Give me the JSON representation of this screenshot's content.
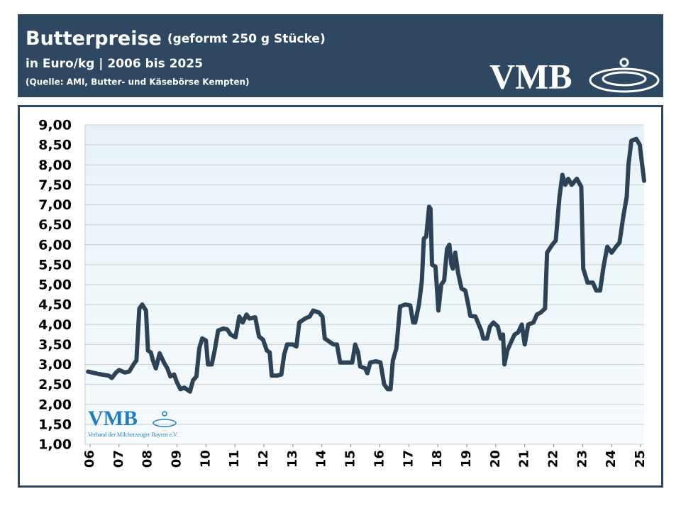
{
  "chart_data": {
    "type": "line",
    "title": "Butterpreise",
    "title_suffix": "(geformt 250 g Stücke)",
    "subtitle": "in Euro/kg | 2006 bis 2025",
    "source": "(Quelle: AMI, Butter- und Käsebörse Kempten)",
    "logo": "VMB",
    "logo_caption": "Verband der Milcherzeuger Bayern e.V.",
    "color": "#2b4257",
    "grid": true,
    "xlim": [
      2005.83,
      2025.12
    ],
    "ylim": [
      1,
      9
    ],
    "yticks": [
      {
        "value": 1,
        "label": "1,00"
      },
      {
        "value": 1.5,
        "label": "1,50"
      },
      {
        "value": 2,
        "label": "2,00"
      },
      {
        "value": 2.5,
        "label": "2,50"
      },
      {
        "value": 3,
        "label": "3,00"
      },
      {
        "value": 3.5,
        "label": "3,50"
      },
      {
        "value": 4,
        "label": "4,00"
      },
      {
        "value": 4.5,
        "label": "4,50"
      },
      {
        "value": 5,
        "label": "5,00"
      },
      {
        "value": 5.5,
        "label": "5,50"
      },
      {
        "value": 6,
        "label": "6,00"
      },
      {
        "value": 6.5,
        "label": "6,50"
      },
      {
        "value": 7,
        "label": "7,00"
      },
      {
        "value": 7.5,
        "label": "7,50"
      },
      {
        "value": 8,
        "label": "8,00"
      },
      {
        "value": 8.5,
        "label": "8,50"
      },
      {
        "value": 9,
        "label": "9,00"
      }
    ],
    "xticks": [
      {
        "value": 2006,
        "label": "06"
      },
      {
        "value": 2007,
        "label": "07"
      },
      {
        "value": 2008,
        "label": "08"
      },
      {
        "value": 2009,
        "label": "09"
      },
      {
        "value": 2010,
        "label": "10"
      },
      {
        "value": 2011,
        "label": "11"
      },
      {
        "value": 2012,
        "label": "12"
      },
      {
        "value": 2013,
        "label": "13"
      },
      {
        "value": 2014,
        "label": "14"
      },
      {
        "value": 2015,
        "label": "15"
      },
      {
        "value": 2016,
        "label": "16"
      },
      {
        "value": 2017,
        "label": "17"
      },
      {
        "value": 2018,
        "label": "18"
      },
      {
        "value": 2019,
        "label": "19"
      },
      {
        "value": 2020,
        "label": "20"
      },
      {
        "value": 2021,
        "label": "21"
      },
      {
        "value": 2022,
        "label": "22"
      },
      {
        "value": 2023,
        "label": "23"
      },
      {
        "value": 2024,
        "label": "24"
      },
      {
        "value": 2025,
        "label": "25"
      }
    ],
    "x": [
      2005.93,
      2006.3,
      2006.65,
      2006.75,
      2006.9,
      2007.0,
      2007.2,
      2007.35,
      2007.5,
      2007.6,
      2007.7,
      2007.8,
      2007.93,
      2008.0,
      2008.1,
      2008.17,
      2008.27,
      2008.4,
      2008.55,
      2008.67,
      2008.77,
      2008.9,
      2009.0,
      2009.12,
      2009.25,
      2009.45,
      2009.55,
      2009.67,
      2009.77,
      2009.87,
      2010.0,
      2010.07,
      2010.2,
      2010.3,
      2010.42,
      2010.6,
      2010.73,
      2010.85,
      2011.02,
      2011.15,
      2011.27,
      2011.4,
      2011.5,
      2011.7,
      2011.83,
      2011.97,
      2012.1,
      2012.2,
      2012.27,
      2012.45,
      2012.6,
      2012.7,
      2012.8,
      2013.0,
      2013.12,
      2013.22,
      2013.42,
      2013.58,
      2013.7,
      2013.9,
      2014.02,
      2014.1,
      2014.24,
      2014.4,
      2014.52,
      2014.63,
      2014.75,
      2014.92,
      2015.05,
      2015.15,
      2015.25,
      2015.32,
      2015.5,
      2015.57,
      2015.67,
      2015.87,
      2016.02,
      2016.15,
      2016.27,
      2016.37,
      2016.45,
      2016.57,
      2016.7,
      2016.87,
      2017.05,
      2017.15,
      2017.22,
      2017.35,
      2017.45,
      2017.52,
      2017.6,
      2017.7,
      2017.75,
      2017.8,
      2017.92,
      2018.02,
      2018.12,
      2018.22,
      2018.32,
      2018.4,
      2018.47,
      2018.52,
      2018.6,
      2018.7,
      2018.82,
      2018.95,
      2019.05,
      2019.12,
      2019.3,
      2019.5,
      2019.57,
      2019.7,
      2019.8,
      2019.92,
      2020.07,
      2020.17,
      2020.25,
      2020.3,
      2020.4,
      2020.52,
      2020.65,
      2020.77,
      2020.9,
      2021.0,
      2021.12,
      2021.3,
      2021.42,
      2021.55,
      2021.7,
      2021.77,
      2021.95,
      2022.07,
      2022.2,
      2022.3,
      2022.4,
      2022.5,
      2022.62,
      2022.8,
      2022.95,
      2023.02,
      2023.17,
      2023.35,
      2023.47,
      2023.6,
      2023.72,
      2023.85,
      2024.0,
      2024.15,
      2024.27,
      2024.4,
      2024.52,
      2024.58,
      2024.68,
      2024.85,
      2024.97,
      2025.12
    ],
    "values": [
      2.82,
      2.76,
      2.72,
      2.66,
      2.8,
      2.86,
      2.8,
      2.82,
      3.0,
      3.1,
      4.4,
      4.5,
      4.35,
      3.35,
      3.3,
      3.1,
      2.9,
      3.28,
      3.05,
      2.9,
      2.7,
      2.75,
      2.55,
      2.38,
      2.42,
      2.32,
      2.6,
      2.7,
      3.4,
      3.65,
      3.6,
      3.0,
      3.0,
      3.35,
      3.85,
      3.9,
      3.88,
      3.75,
      3.68,
      4.2,
      4.05,
      4.25,
      4.15,
      4.18,
      3.7,
      3.62,
      3.35,
      3.3,
      2.72,
      2.72,
      2.75,
      3.25,
      3.5,
      3.5,
      3.45,
      4.05,
      4.15,
      4.2,
      4.35,
      4.3,
      4.2,
      3.65,
      3.58,
      3.5,
      3.5,
      3.05,
      3.05,
      3.05,
      3.05,
      3.5,
      3.3,
      2.95,
      2.9,
      2.78,
      3.05,
      3.08,
      3.05,
      2.5,
      2.38,
      2.38,
      3.1,
      3.4,
      4.45,
      4.5,
      4.48,
      4.05,
      4.05,
      4.5,
      5.1,
      6.15,
      6.2,
      6.95,
      6.9,
      5.5,
      5.45,
      4.35,
      5.0,
      5.1,
      5.9,
      6.0,
      5.5,
      5.4,
      5.8,
      5.3,
      4.9,
      4.85,
      4.5,
      4.22,
      4.2,
      3.85,
      3.65,
      3.65,
      3.95,
      4.05,
      3.95,
      3.65,
      3.75,
      3.0,
      3.35,
      3.55,
      3.75,
      3.8,
      4.0,
      3.5,
      4.0,
      4.05,
      4.25,
      4.3,
      4.4,
      5.8,
      6.0,
      6.1,
      7.2,
      7.75,
      7.5,
      7.65,
      7.5,
      7.65,
      7.45,
      5.4,
      5.05,
      5.05,
      4.85,
      4.85,
      5.45,
      5.95,
      5.8,
      5.95,
      6.05,
      6.7,
      7.2,
      8.0,
      8.6,
      8.65,
      8.5,
      7.6
    ]
  }
}
